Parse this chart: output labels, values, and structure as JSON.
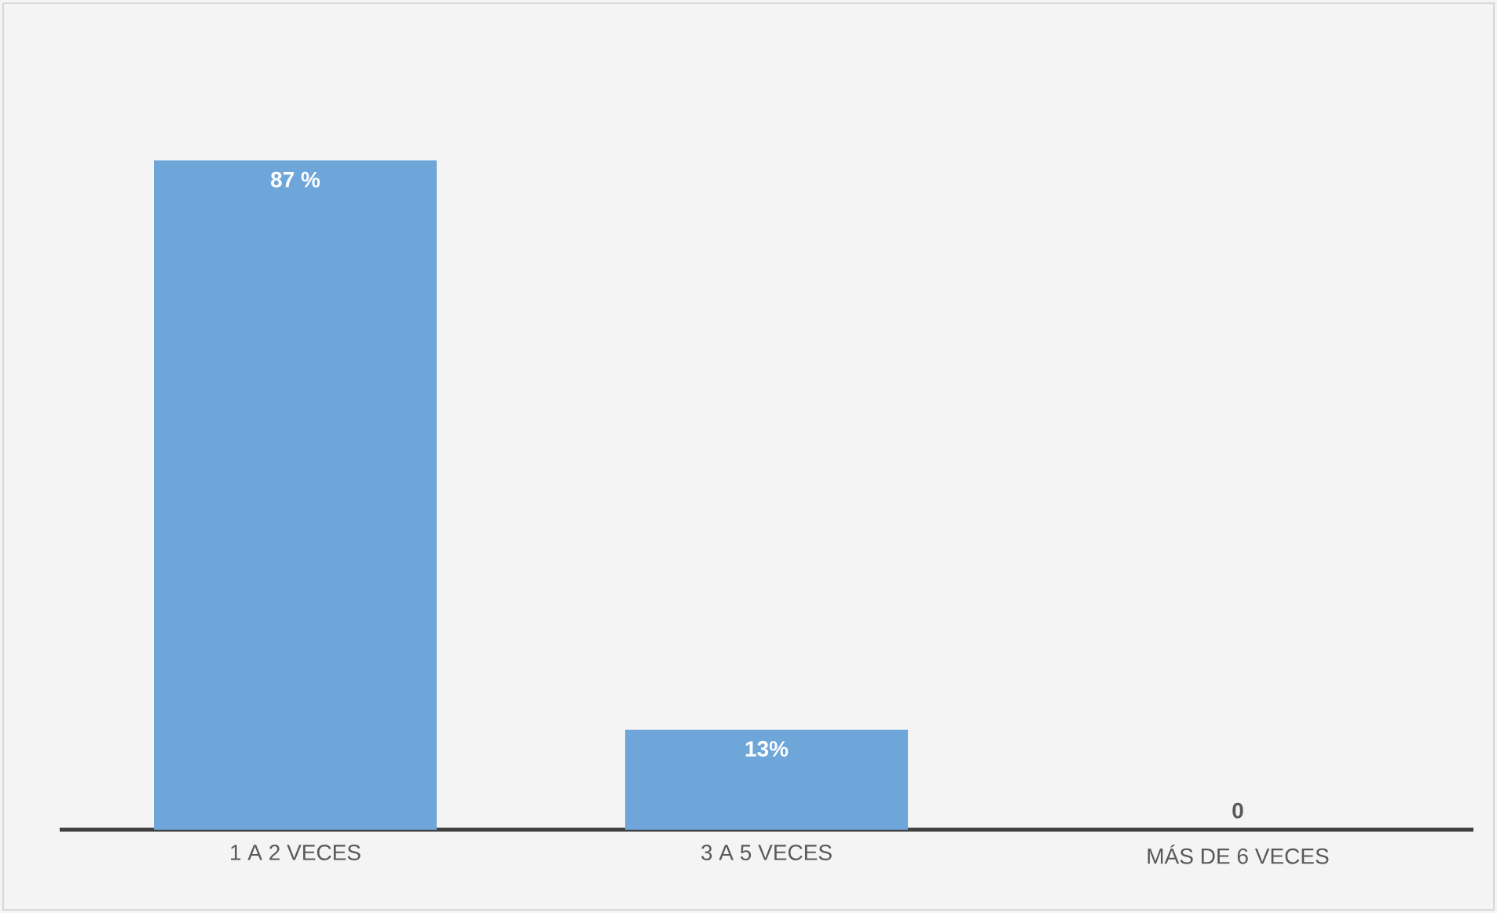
{
  "chart_data": {
    "type": "bar",
    "categories": [
      "1 A 2 VECES",
      "3 A 5 VECES",
      "MÁS DE 6 VECES"
    ],
    "values": [
      87,
      13,
      0
    ],
    "value_labels": [
      "87 %",
      "13%",
      "0"
    ],
    "color": "#6fa6da",
    "tick_labels": "x"
  }
}
